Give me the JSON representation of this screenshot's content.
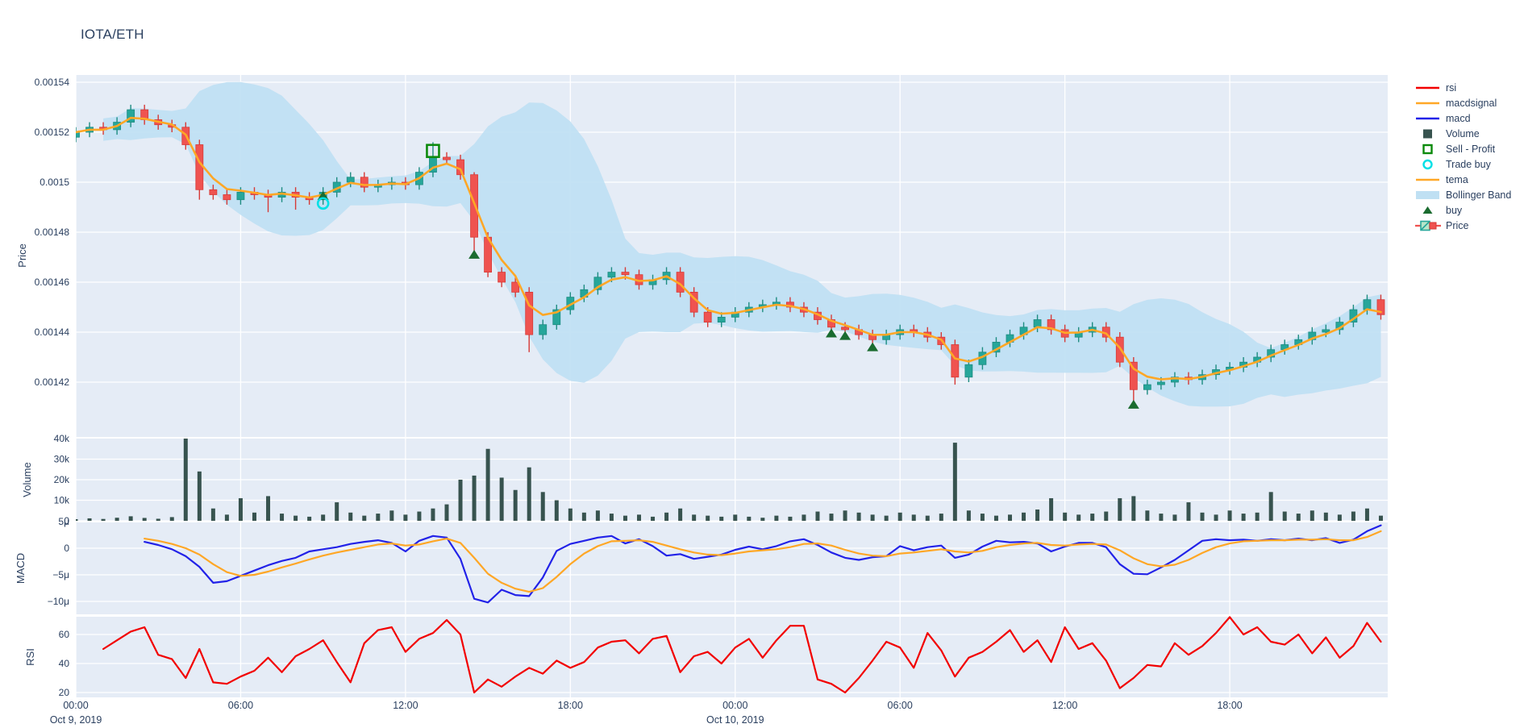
{
  "title": "IOTA/ETH",
  "colors": {
    "plot_bg": "#e5ecf6",
    "grid": "#ffffff",
    "text": "#2a3f5f",
    "candle_up": "#26a69a",
    "candle_up_line": "#1e8c81",
    "candle_down": "#ef5350",
    "candle_down_line": "#d63a37",
    "tema": "#ffa726",
    "macd": "#2222e8",
    "macdsignal": "#ffa726",
    "rsi": "#f20000",
    "volume": "#37534f",
    "bollinger": "#bfe0f3",
    "buy": "#1a6b2f",
    "trade_buy": "#00e0e6",
    "sell_profit": "#0c8a0c"
  },
  "legend": [
    {
      "label": "rsi",
      "symbol": "line",
      "color": "#f20000"
    },
    {
      "label": "macdsignal",
      "symbol": "line",
      "color": "#ffa726"
    },
    {
      "label": "macd",
      "symbol": "line",
      "color": "#2222e8"
    },
    {
      "label": "Volume",
      "symbol": "square",
      "color": "#37534f"
    },
    {
      "label": "Sell - Profit",
      "symbol": "square-outline",
      "color": "#0c8a0c"
    },
    {
      "label": "Trade buy",
      "symbol": "circle-outline",
      "color": "#00e0e6"
    },
    {
      "label": "tema",
      "symbol": "line",
      "color": "#ffa726"
    },
    {
      "label": "Bollinger Band",
      "symbol": "band",
      "color": "#bfe0f3"
    },
    {
      "label": "buy",
      "symbol": "triangle",
      "color": "#1a6b2f"
    },
    {
      "label": "Price",
      "symbol": "candle",
      "color": "#26a69a"
    }
  ],
  "axes": {
    "x": {
      "range_hours": [
        0,
        47.75
      ],
      "ticks": [
        {
          "hour": 0,
          "label": "00:00",
          "date": "Oct 9, 2019"
        },
        {
          "hour": 6,
          "label": "06:00"
        },
        {
          "hour": 12,
          "label": "12:00"
        },
        {
          "hour": 18,
          "label": "18:00"
        },
        {
          "hour": 24,
          "label": "00:00",
          "date": "Oct 10, 2019"
        },
        {
          "hour": 30,
          "label": "06:00"
        },
        {
          "hour": 36,
          "label": "12:00"
        },
        {
          "hour": 42,
          "label": "18:00"
        }
      ]
    },
    "price": {
      "title": "Price",
      "range": [
        0.0013987,
        0.0015429
      ],
      "ticks": [
        {
          "v": 0.00154,
          "label": "0.00154"
        },
        {
          "v": 0.00152,
          "label": "0.00152"
        },
        {
          "v": 0.0015,
          "label": "0.0015"
        },
        {
          "v": 0.00148,
          "label": "0.00148"
        },
        {
          "v": 0.00146,
          "label": "0.00146"
        },
        {
          "v": 0.00144,
          "label": "0.00144"
        },
        {
          "v": 0.00142,
          "label": "0.00142"
        }
      ]
    },
    "volume": {
      "title": "Volume",
      "range": [
        0,
        40400
      ],
      "ticks": [
        {
          "v": 40000,
          "label": "40k"
        },
        {
          "v": 30000,
          "label": "30k"
        },
        {
          "v": 20000,
          "label": "20k"
        },
        {
          "v": 10000,
          "label": "10k"
        },
        {
          "v": 0,
          "label": "0"
        }
      ]
    },
    "macd": {
      "title": "MACD",
      "range_micro": [
        -12.2,
        5.0
      ],
      "ticks": [
        {
          "v": 5,
          "label": "5μ"
        },
        {
          "v": 0,
          "label": "0"
        },
        {
          "v": -5,
          "label": "−5μ"
        },
        {
          "v": -10,
          "label": "−10μ"
        }
      ]
    },
    "rsi": {
      "title": "RSI",
      "range": [
        16.7,
        72.2
      ],
      "ticks": [
        {
          "v": 60,
          "label": "60"
        },
        {
          "v": 40,
          "label": "40"
        },
        {
          "v": 20,
          "label": "20"
        }
      ]
    }
  },
  "chart_data": {
    "type": "mixed",
    "subcharts": [
      "candlestick+bollinger+tema+markers",
      "volume bar",
      "macd line",
      "rsi line"
    ],
    "start": "Oct 9, 2019 00:00",
    "interval_hours": 0.5,
    "n_points": 96,
    "price_pair": "IOTA/ETH",
    "open": [
      0.001518,
      0.00152,
      0.001522,
      0.001521,
      0.001524,
      0.001529,
      0.001525,
      0.001523,
      0.001522,
      0.001515,
      0.001497,
      0.001495,
      0.001493,
      0.001496,
      0.001495,
      0.001494,
      0.001496,
      0.001494,
      0.001493,
      0.001496,
      0.0015,
      0.001502,
      0.001498,
      0.001499,
      0.0015,
      0.001499,
      0.001504,
      0.00151,
      0.001509,
      0.001503,
      0.001478,
      0.001464,
      0.00146,
      0.001456,
      0.001439,
      0.001443,
      0.001449,
      0.001454,
      0.001457,
      0.001462,
      0.001464,
      0.001463,
      0.001459,
      0.001461,
      0.001464,
      0.001456,
      0.001448,
      0.001444,
      0.001446,
      0.001448,
      0.00145,
      0.001451,
      0.001452,
      0.00145,
      0.001448,
      0.001445,
      0.001442,
      0.001441,
      0.001439,
      0.001437,
      0.001439,
      0.001441,
      0.00144,
      0.001438,
      0.001435,
      0.001422,
      0.001427,
      0.001432,
      0.001436,
      0.001439,
      0.001442,
      0.001445,
      0.001441,
      0.001438,
      0.00144,
      0.001442,
      0.001438,
      0.001428,
      0.001417,
      0.001419,
      0.00142,
      0.001422,
      0.001421,
      0.001423,
      0.001425,
      0.001426,
      0.001428,
      0.00143,
      0.001433,
      0.001435,
      0.001437,
      0.00144,
      0.001441,
      0.001444,
      0.001449,
      0.001453
    ],
    "high": [
      0.001522,
      0.001524,
      0.001524,
      0.001526,
      0.001531,
      0.001531,
      0.001527,
      0.001525,
      0.001524,
      0.001517,
      0.001499,
      0.001497,
      0.001498,
      0.001498,
      0.001497,
      0.001498,
      0.001498,
      0.001496,
      0.001498,
      0.001502,
      0.001504,
      0.001504,
      0.001501,
      0.001502,
      0.001502,
      0.001506,
      0.001516,
      0.001512,
      0.001511,
      0.001504,
      0.00148,
      0.001466,
      0.001462,
      0.001458,
      0.001445,
      0.001451,
      0.001456,
      0.001459,
      0.001464,
      0.001466,
      0.001466,
      0.001465,
      0.001463,
      0.001466,
      0.001466,
      0.001458,
      0.00145,
      0.001448,
      0.00145,
      0.001452,
      0.001453,
      0.001454,
      0.001454,
      0.001452,
      0.00145,
      0.001447,
      0.001444,
      0.001443,
      0.001441,
      0.001441,
      0.001443,
      0.001443,
      0.001442,
      0.00144,
      0.001437,
      0.001429,
      0.001434,
      0.001438,
      0.001441,
      0.001444,
      0.001447,
      0.001447,
      0.001443,
      0.001442,
      0.001444,
      0.001444,
      0.00144,
      0.00143,
      0.001421,
      0.001422,
      0.001424,
      0.001424,
      0.001425,
      0.001427,
      0.001428,
      0.00143,
      0.001432,
      0.001435,
      0.001437,
      0.001439,
      0.001442,
      0.001443,
      0.001446,
      0.001451,
      0.001455,
      0.001455
    ],
    "low": [
      0.001516,
      0.001518,
      0.001519,
      0.001519,
      0.001522,
      0.001523,
      0.001521,
      0.00152,
      0.001513,
      0.001493,
      0.001493,
      0.001491,
      0.001491,
      0.001493,
      0.001488,
      0.001492,
      0.001489,
      0.001491,
      0.001491,
      0.001494,
      0.001498,
      0.001496,
      0.001496,
      0.001497,
      0.001497,
      0.001497,
      0.001502,
      0.001507,
      0.001501,
      0.001472,
      0.001462,
      0.001458,
      0.001454,
      0.001432,
      0.001437,
      0.001441,
      0.001447,
      0.001452,
      0.001455,
      0.00146,
      0.001461,
      0.001457,
      0.001457,
      0.001459,
      0.001454,
      0.001446,
      0.001442,
      0.001442,
      0.001444,
      0.001446,
      0.001448,
      0.001449,
      0.001448,
      0.001446,
      0.001443,
      0.00144,
      0.001439,
      0.001437,
      0.001435,
      0.001435,
      0.001437,
      0.001438,
      0.001436,
      0.001433,
      0.001419,
      0.00142,
      0.001425,
      0.00143,
      0.001434,
      0.001437,
      0.00144,
      0.001439,
      0.001436,
      0.001436,
      0.001438,
      0.001436,
      0.001426,
      0.001412,
      0.001415,
      0.001417,
      0.001418,
      0.001419,
      0.001419,
      0.001421,
      0.001423,
      0.001424,
      0.001426,
      0.001428,
      0.001431,
      0.001433,
      0.001435,
      0.001438,
      0.001439,
      0.001442,
      0.001447,
      0.001445
    ],
    "close": [
      0.00152,
      0.001522,
      0.001521,
      0.001524,
      0.001529,
      0.001525,
      0.001523,
      0.001522,
      0.001515,
      0.001497,
      0.001495,
      0.001493,
      0.001496,
      0.001495,
      0.001494,
      0.001496,
      0.001494,
      0.001493,
      0.001496,
      0.0015,
      0.001502,
      0.001498,
      0.001499,
      0.0015,
      0.001499,
      0.001504,
      0.00151,
      0.001509,
      0.001503,
      0.001478,
      0.001464,
      0.00146,
      0.001456,
      0.001439,
      0.001443,
      0.001449,
      0.001454,
      0.001457,
      0.001462,
      0.001464,
      0.001463,
      0.001459,
      0.001461,
      0.001464,
      0.001456,
      0.001448,
      0.001444,
      0.001446,
      0.001448,
      0.00145,
      0.001451,
      0.001452,
      0.00145,
      0.001448,
      0.001445,
      0.001442,
      0.001441,
      0.001439,
      0.001437,
      0.001439,
      0.001441,
      0.00144,
      0.001438,
      0.001435,
      0.001422,
      0.001427,
      0.001432,
      0.001436,
      0.001439,
      0.001442,
      0.001445,
      0.001441,
      0.001438,
      0.00144,
      0.001442,
      0.001438,
      0.001428,
      0.001417,
      0.001419,
      0.00142,
      0.001422,
      0.001421,
      0.001423,
      0.001425,
      0.001426,
      0.001428,
      0.00143,
      0.001433,
      0.001435,
      0.001437,
      0.00144,
      0.001441,
      0.001444,
      0.001449,
      0.001453,
      0.001447
    ],
    "volume": [
      800,
      1200,
      900,
      1500,
      2200,
      1400,
      1000,
      1800,
      40000,
      24000,
      6000,
      3000,
      11000,
      4000,
      12000,
      3500,
      2500,
      2000,
      3000,
      9000,
      4000,
      2500,
      3500,
      5000,
      3000,
      4500,
      6000,
      8000,
      20000,
      22000,
      35000,
      21000,
      15000,
      26000,
      14000,
      10000,
      6000,
      4000,
      5000,
      3500,
      2500,
      3000,
      2000,
      4000,
      6000,
      3000,
      2500,
      2000,
      3000,
      2000,
      1500,
      2500,
      2000,
      3000,
      4500,
      3500,
      5000,
      4000,
      3000,
      2500,
      4000,
      3000,
      2500,
      3500,
      38000,
      5000,
      3500,
      2500,
      3000,
      4000,
      5500,
      11000,
      4000,
      3000,
      3500,
      4500,
      11000,
      12000,
      5000,
      3500,
      3000,
      9000,
      4000,
      3000,
      5000,
      3500,
      4000,
      14000,
      4500,
      3500,
      5000,
      4000,
      3000,
      4500,
      6000,
      2500
    ],
    "macd_micro": [
      null,
      null,
      null,
      null,
      null,
      1.2,
      0.6,
      -0.2,
      -1.5,
      -3.5,
      -6.5,
      -6.2,
      -5.2,
      -4.2,
      -3.2,
      -2.4,
      -1.8,
      -0.6,
      -0.2,
      0.2,
      0.8,
      1.2,
      1.5,
      1.0,
      -0.6,
      1.4,
      2.3,
      2.0,
      -2.0,
      -9.5,
      -10.2,
      -7.8,
      -8.8,
      -9.0,
      -5.5,
      -0.5,
      0.8,
      1.4,
      2.0,
      2.3,
      0.9,
      1.7,
      0.4,
      -1.4,
      -1.1,
      -2.0,
      -1.6,
      -1.2,
      -0.3,
      0.3,
      -0.2,
      0.4,
      1.3,
      1.7,
      0.6,
      -0.8,
      -1.8,
      -2.2,
      -1.7,
      -1.5,
      0.4,
      -0.4,
      0.2,
      0.5,
      -1.8,
      -1.2,
      0.3,
      1.4,
      1.1,
      1.2,
      0.9,
      -0.6,
      0.3,
      1.0,
      1.0,
      0.2,
      -3.0,
      -4.8,
      -4.9,
      -3.6,
      -2.2,
      -0.4,
      1.4,
      1.7,
      1.5,
      1.6,
      1.4,
      1.7,
      1.5,
      1.8,
      1.5,
      1.9,
      1.0,
      1.6,
      3.2,
      4.3
    ],
    "macdsignal_micro": [
      null,
      null,
      null,
      null,
      null,
      1.8,
      1.4,
      0.8,
      0.0,
      -1.2,
      -3.0,
      -4.5,
      -5.2,
      -5.0,
      -4.4,
      -3.6,
      -2.9,
      -2.1,
      -1.4,
      -0.8,
      -0.3,
      0.2,
      0.7,
      0.9,
      0.5,
      0.7,
      1.3,
      1.8,
      1.0,
      -1.8,
      -4.8,
      -6.5,
      -7.6,
      -8.2,
      -7.5,
      -5.4,
      -3.0,
      -1.0,
      0.4,
      1.3,
      1.4,
      1.5,
      1.2,
      0.5,
      -0.2,
      -0.8,
      -1.2,
      -1.3,
      -1.0,
      -0.6,
      -0.4,
      -0.2,
      0.2,
      0.8,
      0.9,
      0.5,
      -0.3,
      -1.0,
      -1.4,
      -1.5,
      -1.0,
      -0.8,
      -0.5,
      -0.2,
      -0.6,
      -0.8,
      -0.5,
      0.2,
      0.6,
      0.9,
      1.0,
      0.6,
      0.5,
      0.7,
      0.8,
      0.7,
      -0.4,
      -1.9,
      -3.0,
      -3.4,
      -3.1,
      -2.2,
      -0.9,
      0.2,
      0.9,
      1.3,
      1.4,
      1.5,
      1.5,
      1.6,
      1.6,
      1.7,
      1.5,
      1.5,
      2.1,
      3.2
    ],
    "rsi": [
      null,
      null,
      50,
      56,
      62,
      65,
      46,
      43,
      30,
      50,
      27,
      26,
      31,
      35,
      44,
      34,
      45,
      50,
      56,
      41,
      27,
      54,
      63,
      65,
      48,
      57,
      61,
      70,
      60,
      20,
      29,
      24,
      31,
      37,
      33,
      42,
      37,
      41,
      51,
      55,
      56,
      47,
      57,
      59,
      34,
      45,
      48,
      40,
      51,
      57,
      44,
      56,
      66,
      66,
      29,
      26,
      20,
      30,
      42,
      55,
      51,
      37,
      61,
      49,
      31,
      44,
      48,
      55,
      63,
      48,
      56,
      41,
      65,
      50,
      54,
      42,
      23,
      30,
      39,
      38,
      54,
      46,
      52,
      61,
      72,
      60,
      65,
      55,
      53,
      60,
      47,
      58,
      44,
      52,
      68,
      55
    ],
    "tema": {
      "type": "ema-of-close",
      "span": 3
    },
    "bollinger": {
      "window": 12,
      "mult": 2,
      "min_halfwidth": 4.5e-06
    },
    "buy_markers": [
      {
        "hour": 9,
        "price": 0.0014945
      },
      {
        "hour": 14.5,
        "price": 0.001471
      },
      {
        "hour": 27.5,
        "price": 0.0014395
      },
      {
        "hour": 28,
        "price": 0.0014385
      },
      {
        "hour": 29,
        "price": 0.001434
      },
      {
        "hour": 38.5,
        "price": 0.001411
      }
    ],
    "trade_buy_markers": [
      {
        "hour": 9,
        "price": 0.0014915
      }
    ],
    "sell_profit_markers": [
      {
        "hour": 13,
        "price": 0.0015125
      }
    ]
  }
}
